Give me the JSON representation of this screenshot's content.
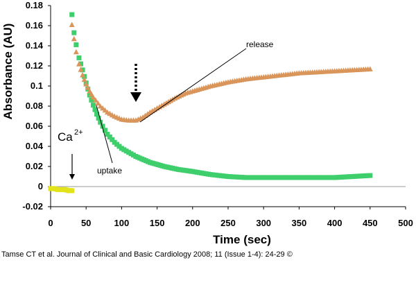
{
  "chart_data": {
    "type": "scatter",
    "xlabel": "Time (sec)",
    "ylabel": "Absorbance (AU)",
    "xlim": [
      0,
      500
    ],
    "ylim": [
      -0.02,
      0.18
    ],
    "x_ticks": [
      0,
      50,
      100,
      150,
      200,
      250,
      300,
      350,
      400,
      450,
      500
    ],
    "y_ticks": [
      -0.02,
      0,
      0.02,
      0.04,
      0.06,
      0.08,
      0.1,
      0.12,
      0.14,
      0.16,
      0.18
    ],
    "y_tick_labels": [
      "-0.02",
      "0",
      "0.02",
      "0.04",
      "0.06",
      "0.08",
      "0.1",
      "0.12",
      "0.14",
      "0.16",
      "0.18"
    ],
    "grid": false,
    "legend": "none",
    "series": [
      {
        "marker": "square",
        "color": "#3ecf6c",
        "x": [
          30,
          33,
          36,
          40,
          45,
          50,
          55,
          60,
          65,
          70,
          80,
          90,
          100,
          110,
          120,
          140,
          160,
          180,
          200,
          225,
          250,
          275,
          300,
          325,
          350,
          375,
          400,
          425,
          450
        ],
        "y": [
          0.171,
          0.153,
          0.141,
          0.128,
          0.116,
          0.103,
          0.091,
          0.081,
          0.072,
          0.064,
          0.052,
          0.044,
          0.038,
          0.034,
          0.03,
          0.024,
          0.02,
          0.017,
          0.015,
          0.012,
          0.01,
          0.009,
          0.009,
          0.009,
          0.009,
          0.009,
          0.009,
          0.01,
          0.011
        ]
      },
      {
        "marker": "triangle",
        "color": "#d9955a",
        "x": [
          30,
          33,
          36,
          40,
          45,
          50,
          55,
          60,
          70,
          80,
          90,
          100,
          110,
          120,
          130,
          140,
          150,
          160,
          175,
          190,
          200,
          225,
          250,
          275,
          300,
          325,
          350,
          375,
          400,
          425,
          450
        ],
        "y": [
          0.161,
          0.147,
          0.134,
          0.122,
          0.111,
          0.102,
          0.095,
          0.089,
          0.08,
          0.074,
          0.07,
          0.067,
          0.066,
          0.066,
          0.069,
          0.074,
          0.078,
          0.082,
          0.088,
          0.093,
          0.095,
          0.1,
          0.104,
          0.107,
          0.109,
          0.111,
          0.113,
          0.114,
          0.115,
          0.116,
          0.117
        ]
      },
      {
        "marker": "square",
        "color": "#e3e31a",
        "x": [
          0,
          5,
          10,
          15,
          20,
          25,
          30
        ],
        "y": [
          -0.002,
          -0.002,
          -0.003,
          -0.003,
          -0.003,
          -0.004,
          -0.004
        ]
      }
    ],
    "annotations": {
      "release": "release",
      "uptake": "uptake",
      "ca": "Ca",
      "ca_sup": "2+"
    }
  },
  "citation": "Tamse CT et al. Journal of Clinical and Basic Cardiology 2008; 11 (Issue 1-4): 24-29 ©"
}
